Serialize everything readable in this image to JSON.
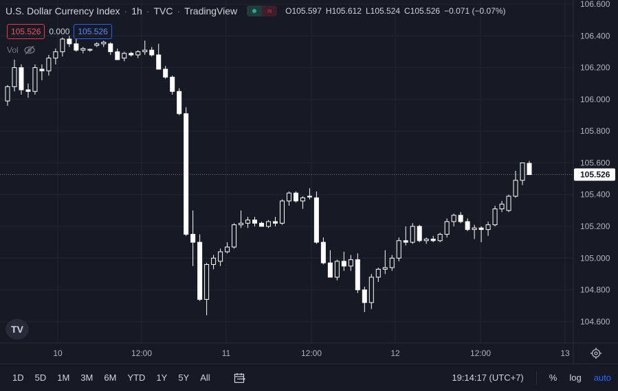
{
  "header": {
    "symbol_name": "U.S. Dollar Currency Index",
    "interval": "1h",
    "exchange": "TVC",
    "platform": "TradingView",
    "pill_icon_1": "market-open-icon",
    "pill_icon_2": "≈",
    "ohlc": {
      "o_label": "O",
      "o_value": "105.597",
      "h_label": "H",
      "h_value": "105.612",
      "l_label": "L",
      "l_value": "105.524",
      "c_label": "C",
      "c_value": "105.526",
      "change": "−0.071 (−0.07%)"
    }
  },
  "trade_panel": {
    "sell_price": "105.526",
    "spread": "0.000",
    "buy_price": "105.526"
  },
  "volume": {
    "label": "Vol",
    "icon": "eye-hidden-icon"
  },
  "bottom_bar": {
    "ranges": [
      "1D",
      "5D",
      "1M",
      "3M",
      "6M",
      "YTD",
      "1Y",
      "5Y",
      "All"
    ],
    "calendar_icon": "calendar-icon",
    "time": "19:14:17 (UTC+7)",
    "percent_label": "%",
    "log_label": "log",
    "auto_label": "auto"
  },
  "logo_text": "TV",
  "colors": {
    "background": "#161a25",
    "grid": "#232632",
    "candle": "#ffffff",
    "accent_blue": "#2962ff",
    "accent_red": "#f23645"
  },
  "chart_data": {
    "type": "candlestick",
    "title": "U.S. Dollar Currency Index",
    "interval": "1h",
    "ylim": [
      104.5,
      106.6
    ],
    "y_ticks": [
      "106.600",
      "106.400",
      "106.200",
      "106.000",
      "105.800",
      "105.600",
      "105.400",
      "105.200",
      "105.000",
      "104.800",
      "104.600"
    ],
    "x_ticks": [
      "10",
      "12:00",
      "11",
      "12:00",
      "12",
      "12:00",
      "13"
    ],
    "last_price_label": "105.526",
    "last_price": 105.526,
    "candles": [
      {
        "o": 105.99,
        "h": 106.09,
        "l": 105.96,
        "c": 106.08
      },
      {
        "o": 106.08,
        "h": 106.25,
        "l": 106.05,
        "c": 106.2
      },
      {
        "o": 106.2,
        "h": 106.22,
        "l": 106.03,
        "c": 106.06
      },
      {
        "o": 106.06,
        "h": 106.1,
        "l": 106.01,
        "c": 106.05
      },
      {
        "o": 106.05,
        "h": 106.22,
        "l": 106.03,
        "c": 106.2
      },
      {
        "o": 106.19,
        "h": 106.22,
        "l": 106.12,
        "c": 106.18
      },
      {
        "o": 106.18,
        "h": 106.28,
        "l": 106.15,
        "c": 106.26
      },
      {
        "o": 106.26,
        "h": 106.32,
        "l": 106.22,
        "c": 106.3
      },
      {
        "o": 106.3,
        "h": 106.39,
        "l": 106.27,
        "c": 106.38
      },
      {
        "o": 106.38,
        "h": 106.4,
        "l": 106.33,
        "c": 106.35
      },
      {
        "o": 106.35,
        "h": 106.38,
        "l": 106.3,
        "c": 106.31
      },
      {
        "o": 106.31,
        "h": 106.33,
        "l": 106.29,
        "c": 106.32
      },
      {
        "o": 106.31,
        "h": 106.32,
        "l": 106.3,
        "c": 106.315
      },
      {
        "o": 106.34,
        "h": 106.36,
        "l": 106.33,
        "c": 106.35
      },
      {
        "o": 106.35,
        "h": 106.37,
        "l": 106.33,
        "c": 106.36
      },
      {
        "o": 106.35,
        "h": 106.36,
        "l": 106.28,
        "c": 106.3
      },
      {
        "o": 106.3,
        "h": 106.32,
        "l": 106.25,
        "c": 106.25
      },
      {
        "o": 106.26,
        "h": 106.3,
        "l": 106.24,
        "c": 106.29
      },
      {
        "o": 106.29,
        "h": 106.3,
        "l": 106.27,
        "c": 106.28
      },
      {
        "o": 106.28,
        "h": 106.31,
        "l": 106.26,
        "c": 106.3
      },
      {
        "o": 106.3,
        "h": 106.37,
        "l": 106.28,
        "c": 106.31
      },
      {
        "o": 106.31,
        "h": 106.33,
        "l": 106.27,
        "c": 106.28
      },
      {
        "o": 106.28,
        "h": 106.35,
        "l": 106.19,
        "c": 106.19
      },
      {
        "o": 106.19,
        "h": 106.21,
        "l": 106.13,
        "c": 106.14
      },
      {
        "o": 106.14,
        "h": 106.15,
        "l": 106.03,
        "c": 106.05
      },
      {
        "o": 106.05,
        "h": 106.07,
        "l": 105.9,
        "c": 105.91
      },
      {
        "o": 105.91,
        "h": 105.95,
        "l": 105.14,
        "c": 105.15
      },
      {
        "o": 105.15,
        "h": 105.3,
        "l": 104.95,
        "c": 105.1
      },
      {
        "o": 105.1,
        "h": 105.15,
        "l": 104.73,
        "c": 104.74
      },
      {
        "o": 104.74,
        "h": 104.97,
        "l": 104.64,
        "c": 104.96
      },
      {
        "o": 104.96,
        "h": 105.02,
        "l": 104.93,
        "c": 105.0
      },
      {
        "o": 104.98,
        "h": 105.06,
        "l": 104.95,
        "c": 105.04
      },
      {
        "o": 105.04,
        "h": 105.1,
        "l": 105.03,
        "c": 105.07
      },
      {
        "o": 105.07,
        "h": 105.22,
        "l": 105.06,
        "c": 105.21
      },
      {
        "o": 105.21,
        "h": 105.3,
        "l": 105.19,
        "c": 105.22
      },
      {
        "o": 105.22,
        "h": 105.26,
        "l": 105.19,
        "c": 105.24
      },
      {
        "o": 105.24,
        "h": 105.26,
        "l": 105.2,
        "c": 105.22
      },
      {
        "o": 105.22,
        "h": 105.23,
        "l": 105.2,
        "c": 105.2
      },
      {
        "o": 105.2,
        "h": 105.24,
        "l": 105.19,
        "c": 105.23
      },
      {
        "o": 105.23,
        "h": 105.26,
        "l": 105.2,
        "c": 105.22
      },
      {
        "o": 105.22,
        "h": 105.37,
        "l": 105.21,
        "c": 105.36
      },
      {
        "o": 105.36,
        "h": 105.42,
        "l": 105.33,
        "c": 105.41
      },
      {
        "o": 105.41,
        "h": 105.42,
        "l": 105.35,
        "c": 105.36
      },
      {
        "o": 105.36,
        "h": 105.39,
        "l": 105.31,
        "c": 105.38
      },
      {
        "o": 105.39,
        "h": 105.44,
        "l": 105.37,
        "c": 105.385
      },
      {
        "o": 105.38,
        "h": 105.42,
        "l": 105.09,
        "c": 105.1
      },
      {
        "o": 105.1,
        "h": 105.13,
        "l": 104.96,
        "c": 104.97
      },
      {
        "o": 104.97,
        "h": 105.05,
        "l": 104.88,
        "c": 104.88
      },
      {
        "o": 104.88,
        "h": 104.99,
        "l": 104.86,
        "c": 104.98
      },
      {
        "o": 104.98,
        "h": 105.04,
        "l": 104.92,
        "c": 104.95
      },
      {
        "o": 104.95,
        "h": 105.02,
        "l": 104.92,
        "c": 104.99
      },
      {
        "o": 104.99,
        "h": 105.03,
        "l": 104.78,
        "c": 104.8
      },
      {
        "o": 104.8,
        "h": 104.82,
        "l": 104.66,
        "c": 104.72
      },
      {
        "o": 104.72,
        "h": 104.9,
        "l": 104.68,
        "c": 104.88
      },
      {
        "o": 104.88,
        "h": 104.94,
        "l": 104.85,
        "c": 104.93
      },
      {
        "o": 104.93,
        "h": 105.05,
        "l": 104.9,
        "c": 104.94
      },
      {
        "o": 104.94,
        "h": 105.02,
        "l": 104.92,
        "c": 105.0
      },
      {
        "o": 105.0,
        "h": 105.13,
        "l": 104.98,
        "c": 105.11
      },
      {
        "o": 105.11,
        "h": 105.2,
        "l": 105.08,
        "c": 105.1
      },
      {
        "o": 105.1,
        "h": 105.22,
        "l": 105.09,
        "c": 105.2
      },
      {
        "o": 105.2,
        "h": 105.21,
        "l": 105.1,
        "c": 105.11
      },
      {
        "o": 105.11,
        "h": 105.13,
        "l": 105.09,
        "c": 105.12
      },
      {
        "o": 105.12,
        "h": 105.14,
        "l": 105.1,
        "c": 105.11
      },
      {
        "o": 105.11,
        "h": 105.16,
        "l": 105.1,
        "c": 105.15
      },
      {
        "o": 105.15,
        "h": 105.25,
        "l": 105.13,
        "c": 105.23
      },
      {
        "o": 105.23,
        "h": 105.28,
        "l": 105.2,
        "c": 105.27
      },
      {
        "o": 105.27,
        "h": 105.29,
        "l": 105.22,
        "c": 105.23
      },
      {
        "o": 105.23,
        "h": 105.25,
        "l": 105.17,
        "c": 105.18
      },
      {
        "o": 105.18,
        "h": 105.21,
        "l": 105.12,
        "c": 105.19
      },
      {
        "o": 105.19,
        "h": 105.2,
        "l": 105.1,
        "c": 105.18
      },
      {
        "o": 105.18,
        "h": 105.23,
        "l": 105.14,
        "c": 105.21
      },
      {
        "o": 105.21,
        "h": 105.33,
        "l": 105.2,
        "c": 105.31
      },
      {
        "o": 105.31,
        "h": 105.36,
        "l": 105.29,
        "c": 105.34
      },
      {
        "o": 105.3,
        "h": 105.4,
        "l": 105.29,
        "c": 105.39
      },
      {
        "o": 105.39,
        "h": 105.55,
        "l": 105.38,
        "c": 105.49
      },
      {
        "o": 105.49,
        "h": 105.6,
        "l": 105.46,
        "c": 105.6
      },
      {
        "o": 105.597,
        "h": 105.612,
        "l": 105.524,
        "c": 105.526
      }
    ]
  }
}
